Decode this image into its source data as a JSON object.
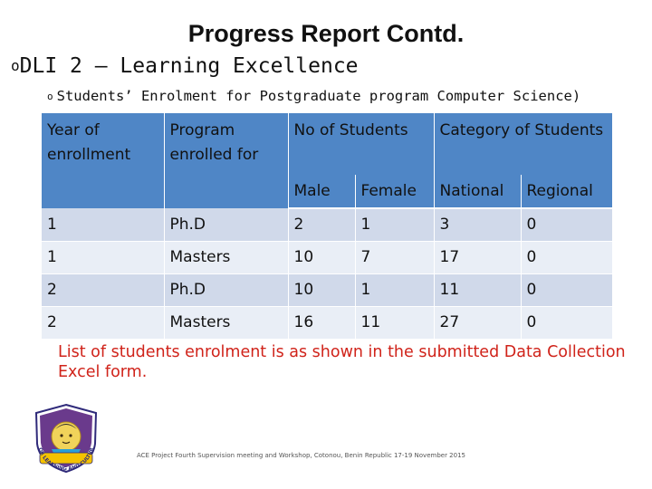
{
  "title": "Progress Report Contd.",
  "bullet_level1": {
    "marker": "o",
    "text": "DLI 2 – Learning Excellence"
  },
  "bullet_level2": {
    "marker": "o",
    "text": "Students’ Enrolment for Postgraduate program Computer Science)"
  },
  "table": {
    "headers": {
      "year": "Year of enrollment",
      "program": "Program enrolled for",
      "students": "No of Students",
      "category": "Category of Students",
      "male": "Male",
      "female": "Female",
      "national": "National",
      "regional": "Regional"
    },
    "rows": [
      {
        "year": "1",
        "program": "Ph.D",
        "male": "2",
        "female": "1",
        "national": "3",
        "regional": "0"
      },
      {
        "year": "1",
        "program": "Masters",
        "male": "10",
        "female": "7",
        "national": "17",
        "regional": "0"
      },
      {
        "year": "2",
        "program": "Ph.D",
        "male": "10",
        "female": "1",
        "national": "11",
        "regional": "0"
      },
      {
        "year": "2",
        "program": "Masters",
        "male": "16",
        "female": "11",
        "national": "27",
        "regional": "0"
      }
    ]
  },
  "note": "List of students enrolment is as shown in the submitted Data Collection Excel form.",
  "footer": "ACE Project Fourth Supervision meeting and Workshop, Cotonou, Benin Republic 17-19 November 2015",
  "logo": {
    "name": "university-crest",
    "ring_text": "FOR LEARNING AND CULTURE"
  },
  "colors": {
    "header_fill": "#4f86c6",
    "row_odd": "#d0d9ea",
    "row_even": "#e9eef6",
    "note_text": "#d0231a"
  }
}
